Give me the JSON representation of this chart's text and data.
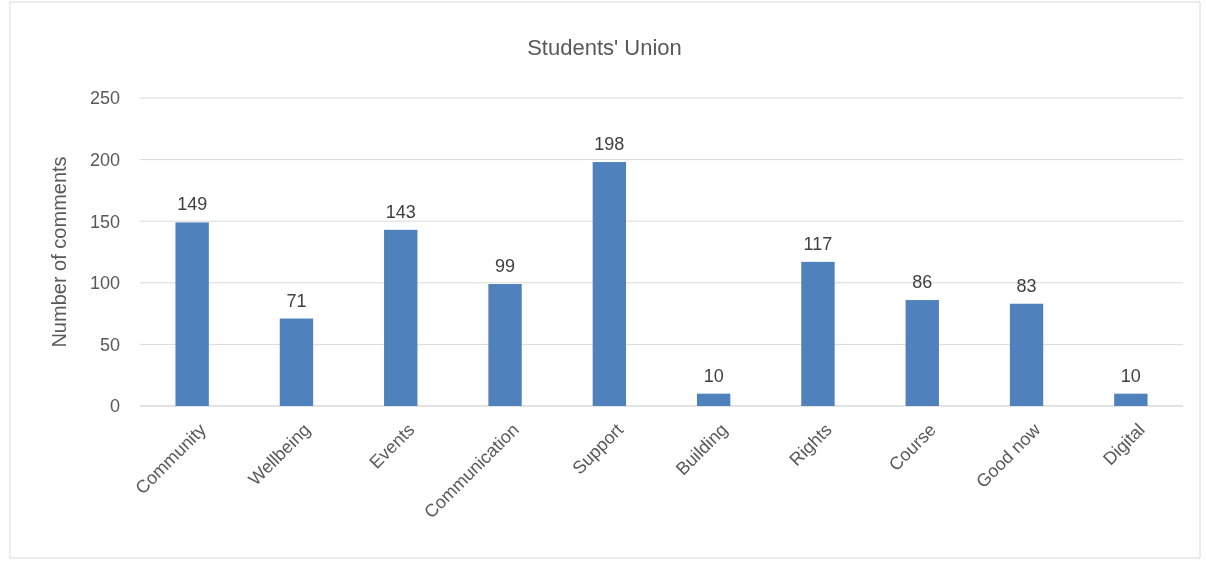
{
  "chart_data": {
    "type": "bar",
    "title": "Students' Union",
    "ylabel": "Number of comments",
    "categories": [
      "Community",
      "Wellbeing",
      "Events",
      "Communication",
      "Support",
      "Building",
      "Rights",
      "Course",
      "Good now",
      "Digital"
    ],
    "values": [
      149,
      71,
      143,
      99,
      198,
      10,
      117,
      86,
      83,
      10
    ],
    "color": "#4f81bd",
    "ylim": [
      0,
      250
    ],
    "yticks": [
      0,
      50,
      100,
      150,
      200,
      250
    ],
    "grid": "y",
    "data_labels": true
  }
}
